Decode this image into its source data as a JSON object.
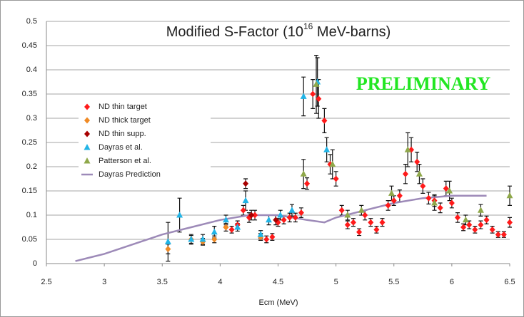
{
  "chart_data": {
    "type": "scatter",
    "title": [
      "Modified S-Factor (10",
      "16",
      " MeV-barns)"
    ],
    "annotation": "PRELIMINARY",
    "xlabel": "Ecm (MeV)",
    "xlim": [
      2.5,
      6.5
    ],
    "xticks": [
      2.5,
      3,
      3.5,
      4,
      4.5,
      5,
      5.5,
      6,
      6.5
    ],
    "ylim": [
      0,
      0.5
    ],
    "yticks": [
      0,
      0.05,
      0.1,
      0.15,
      0.2,
      0.25,
      0.3,
      0.35,
      0.4,
      0.45,
      0.5
    ],
    "grid": true,
    "legend": "left",
    "series": [
      {
        "name": "ND thin target",
        "color": "#ff1a1a",
        "marker": "diamond",
        "x": [
          4.05,
          4.1,
          4.15,
          4.2,
          4.25,
          4.3,
          4.35,
          4.4,
          4.45,
          4.5,
          4.55,
          4.6,
          4.65,
          4.7,
          4.75,
          4.8,
          4.85,
          4.9,
          4.95,
          5.0,
          5.05,
          5.1,
          5.15,
          5.2,
          5.25,
          5.3,
          5.35,
          5.4,
          5.45,
          5.5,
          5.55,
          5.6,
          5.65,
          5.7,
          5.75,
          5.8,
          5.85,
          5.9,
          5.95,
          6.0,
          6.05,
          6.1,
          6.15,
          6.2,
          6.25,
          6.3,
          6.35,
          6.4,
          6.45,
          6.5
        ],
        "values": [
          0.075,
          0.07,
          0.08,
          0.11,
          0.095,
          0.1,
          0.055,
          0.05,
          0.055,
          0.085,
          0.09,
          0.095,
          0.095,
          0.105,
          0.165,
          0.35,
          0.34,
          0.295,
          0.205,
          0.175,
          0.11,
          0.08,
          0.085,
          0.065,
          0.1,
          0.085,
          0.07,
          0.085,
          0.12,
          0.13,
          0.14,
          0.185,
          0.235,
          0.21,
          0.16,
          0.135,
          0.13,
          0.115,
          0.155,
          0.125,
          0.095,
          0.075,
          0.08,
          0.07,
          0.08,
          0.09,
          0.07,
          0.06,
          0.06,
          0.085
        ],
        "errors": [
          0.008,
          0.007,
          0.008,
          0.01,
          0.01,
          0.01,
          0.007,
          0.007,
          0.007,
          0.008,
          0.008,
          0.009,
          0.009,
          0.01,
          0.012,
          0.03,
          0.04,
          0.025,
          0.02,
          0.015,
          0.01,
          0.008,
          0.008,
          0.007,
          0.01,
          0.008,
          0.007,
          0.008,
          0.01,
          0.01,
          0.012,
          0.02,
          0.025,
          0.02,
          0.015,
          0.012,
          0.012,
          0.01,
          0.015,
          0.01,
          0.01,
          0.007,
          0.008,
          0.007,
          0.008,
          0.008,
          0.007,
          0.006,
          0.006,
          0.01
        ]
      },
      {
        "name": "ND thick target",
        "color": "#f08a24",
        "marker": "diamond",
        "x": [
          3.55,
          3.75,
          3.85,
          3.95,
          4.05,
          4.35
        ],
        "values": [
          0.03,
          0.05,
          0.045,
          0.05,
          0.075,
          0.055
        ],
        "errors": [
          0.01,
          0.008,
          0.007,
          0.007,
          0.008,
          0.007
        ]
      },
      {
        "name": "ND thin supp.",
        "color": "#a80000",
        "marker": "diamond",
        "x": [
          4.22,
          4.27,
          4.48
        ],
        "values": [
          0.165,
          0.1,
          0.09
        ],
        "errors": [
          0.01,
          0.01,
          0.01
        ]
      },
      {
        "name": "Dayras et al.",
        "color": "#22b4e6",
        "marker": "triangle",
        "x": [
          3.55,
          3.65,
          3.75,
          3.85,
          3.95,
          4.05,
          4.15,
          4.22,
          4.35,
          4.42,
          4.52,
          4.62,
          4.72,
          4.84,
          4.92
        ],
        "values": [
          0.045,
          0.1,
          0.05,
          0.05,
          0.065,
          0.09,
          0.075,
          0.13,
          0.06,
          0.09,
          0.1,
          0.11,
          0.345,
          0.375,
          0.235
        ],
        "errors": [
          0.04,
          0.035,
          0.01,
          0.01,
          0.012,
          0.01,
          0.008,
          0.02,
          0.008,
          0.01,
          0.01,
          0.012,
          0.04,
          0.05,
          0.025
        ]
      },
      {
        "name": "Patterson et al.",
        "color": "#8fa84a",
        "marker": "triangle",
        "x": [
          4.72,
          4.83,
          4.97,
          5.1,
          5.22,
          5.48,
          5.62,
          5.72,
          5.85,
          5.98,
          6.12,
          6.25,
          6.5
        ],
        "values": [
          0.185,
          0.37,
          0.205,
          0.1,
          0.11,
          0.145,
          0.235,
          0.185,
          0.125,
          0.15,
          0.09,
          0.11,
          0.14
        ],
        "errors": [
          0.03,
          0.06,
          0.03,
          0.01,
          0.01,
          0.015,
          0.035,
          0.02,
          0.015,
          0.02,
          0.01,
          0.012,
          0.02
        ]
      },
      {
        "name": "Dayras Prediction",
        "color": "#9d8ab8",
        "marker": "line",
        "x": [
          2.75,
          3.0,
          3.25,
          3.5,
          3.75,
          4.0,
          4.25,
          4.5,
          4.75,
          4.9,
          5.0,
          5.25,
          5.5,
          5.75,
          6.0,
          6.3
        ],
        "values": [
          0.005,
          0.02,
          0.04,
          0.06,
          0.075,
          0.09,
          0.1,
          0.1,
          0.09,
          0.085,
          0.095,
          0.11,
          0.125,
          0.135,
          0.14,
          0.14
        ]
      }
    ]
  }
}
